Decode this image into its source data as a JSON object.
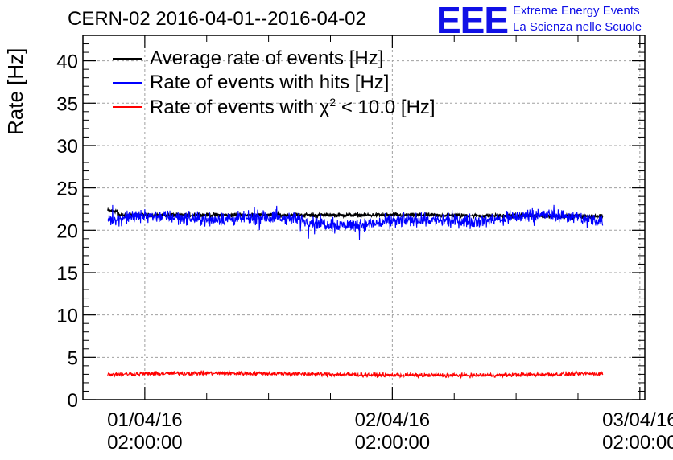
{
  "header": {
    "title": "CERN-02 2016-04-01--2016-04-02",
    "logo_mark": "EEE",
    "logo_line1": "Extreme Energy Events",
    "logo_line2": "La Scienza nelle Scuole"
  },
  "chart_data": {
    "type": "line",
    "ylabel": "Rate [Hz]",
    "ylim": [
      0,
      43
    ],
    "yticks": [
      0,
      5,
      10,
      15,
      20,
      25,
      30,
      35,
      40
    ],
    "x_ticks": [
      {
        "line1": "01/04/16",
        "line2": "02:00:00"
      },
      {
        "line1": "02/04/16",
        "line2": "02:00:00"
      },
      {
        "line1": "03/04/16",
        "line2": "02:00:00"
      }
    ],
    "x_range_days": [
      -0.25,
      2.02
    ],
    "data_range_days": [
      -0.15,
      1.85
    ],
    "grid": true,
    "legend_position": "top-left",
    "series": [
      {
        "name": "Average rate of events [Hz]",
        "color": "#000000",
        "start": 22.3,
        "level": 21.8,
        "end": 21.2,
        "noise": 0.2
      },
      {
        "name": "Rate of events with hits [Hz]",
        "color": "#0000ff",
        "level": 21.2,
        "noise": 1.2
      },
      {
        "name_prefix": "Rate of events with ",
        "name_symbol": "χ",
        "name_sup": "2",
        "name_suffix": " < 10.0 [Hz]",
        "color": "#ff0000",
        "level": 3.0,
        "noise": 0.55
      }
    ]
  }
}
